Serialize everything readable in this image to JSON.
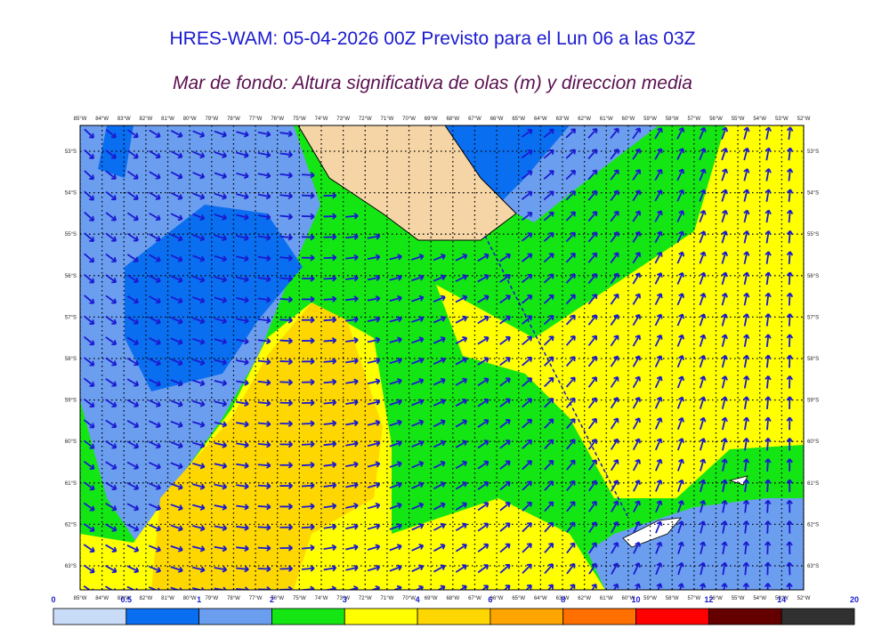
{
  "header": {
    "title": "HRES-WAM: 05-04-2026 00Z Previsto para el Lun 06 a las 03Z",
    "subtitle": "Mar de fondo: Altura significativa de olas (m) y direccion media"
  },
  "map": {
    "lon_labels": [
      "85°W",
      "84°W",
      "83°W",
      "82°W",
      "81°W",
      "80°W",
      "79°W",
      "78°W",
      "77°W",
      "76°W",
      "75°W",
      "74°W",
      "73°W",
      "72°W",
      "71°W",
      "70°W",
      "69°W",
      "68°W",
      "67°W",
      "66°W",
      "65°W",
      "64°W",
      "63°W",
      "62°W",
      "61°W",
      "60°W",
      "59°W",
      "58°W",
      "57°W",
      "56°W",
      "55°W",
      "54°W",
      "53°W",
      "52°W"
    ],
    "lat_labels": [
      "53°S",
      "54°S",
      "55°S",
      "56°S",
      "57°S",
      "58°S",
      "59°S",
      "60°S",
      "61°S",
      "62°S",
      "63°S"
    ]
  },
  "colorbar": {
    "labels": [
      "0",
      "0.5",
      "1",
      "2",
      "3",
      "4",
      "6",
      "8",
      "10",
      "12",
      "14",
      "20"
    ],
    "colors": [
      "#c8dcf8",
      "#0a6ef0",
      "#6c9ef0",
      "#14e614",
      "#ffff00",
      "#ffd700",
      "#ffa500",
      "#ff7000",
      "#ff0000",
      "#650000",
      "#303030"
    ]
  }
}
